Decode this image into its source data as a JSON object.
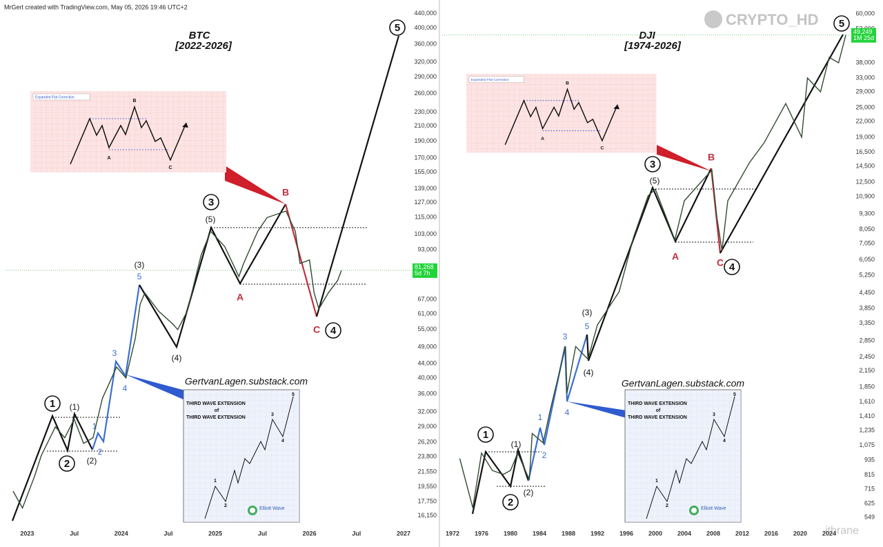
{
  "header": {
    "credit": "MrGert created with TradingView.com, May 05, 2026 19:46 UTC+2",
    "watermark": "CRYPTO_HD",
    "watermark2": "ithrane"
  },
  "insets": {
    "flat": {
      "title": "Expanded Flat Correction",
      "labels": [
        "A",
        "B",
        "C"
      ]
    },
    "third": {
      "line1": "THIRD WAVE EXTENSION",
      "line2": "of",
      "labels": [
        "1",
        "2",
        "3",
        "4",
        "5"
      ],
      "logo": "Elliott Wave"
    }
  },
  "chart_data": [
    {
      "type": "line",
      "title": "BTC",
      "subtitle": "[2022-2026]",
      "source": "GertvanLagen.substack.com",
      "color": "#2f4a2f",
      "log_scale": true,
      "x": [
        2022.85,
        2022.95,
        2023.08,
        2023.15,
        2023.3,
        2023.4,
        2023.5,
        2023.6,
        2023.7,
        2023.8,
        2023.95,
        2024.05,
        2024.15,
        2024.2,
        2024.25,
        2024.4,
        2024.55,
        2024.6,
        2024.7,
        2024.85,
        2024.95,
        2025.1,
        2025.25,
        2025.3,
        2025.45,
        2025.55,
        2025.75,
        2025.85,
        2025.9,
        2026.0,
        2026.05,
        2026.1,
        2026.2,
        2026.3,
        2026.34
      ],
      "values": [
        19000,
        17000,
        21000,
        24000,
        29000,
        27000,
        30500,
        26000,
        27000,
        35000,
        43000,
        40000,
        52000,
        65000,
        70000,
        62000,
        57000,
        55000,
        62000,
        90000,
        105000,
        95000,
        78000,
        85000,
        105000,
        115000,
        120000,
        105000,
        85000,
        87000,
        70000,
        63000,
        70000,
        76000,
        81268
      ],
      "xlim": [
        2022.77,
        2027.11
      ],
      "xticks": [
        2023,
        {
          "value": 2023.5,
          "label": "Jul"
        },
        2024,
        {
          "value": 2024.5,
          "label": "Jul"
        },
        2025,
        {
          "value": 2025.5,
          "label": "Jul"
        },
        2026,
        {
          "value": 2026.5,
          "label": "Jul"
        },
        2027
      ],
      "ylim": [
        14600,
        460000
      ],
      "yticks": [
        {
          "value": 440000,
          "label": "440,000"
        },
        {
          "value": 400000,
          "label": "400,000"
        },
        {
          "value": 360000,
          "label": "360,000"
        },
        {
          "value": 320000,
          "label": "320,000"
        },
        {
          "value": 290000,
          "label": "290,000"
        },
        {
          "value": 260000,
          "label": "260,000"
        },
        {
          "value": 230000,
          "label": "230,000"
        },
        {
          "value": 210000,
          "label": "210,000"
        },
        {
          "value": 190000,
          "label": "190,000"
        },
        {
          "value": 170000,
          "label": "170,000"
        },
        {
          "value": 155000,
          "label": "155,000"
        },
        {
          "value": 139000,
          "label": "139,000"
        },
        {
          "value": 127000,
          "label": "127,000"
        },
        {
          "value": 115000,
          "label": "115,000"
        },
        {
          "value": 103000,
          "label": "103,000"
        },
        {
          "value": 93000,
          "label": "93,000"
        },
        {
          "value": 67000,
          "label": "67,000"
        },
        {
          "value": 61000,
          "label": "61,000"
        },
        {
          "value": 55000,
          "label": "55,000"
        },
        {
          "value": 49000,
          "label": "49,000"
        },
        {
          "value": 44000,
          "label": "44,000"
        },
        {
          "value": 40000,
          "label": "40,000"
        },
        {
          "value": 36000,
          "label": "36,000"
        },
        {
          "value": 32000,
          "label": "32,000"
        },
        {
          "value": 29000,
          "label": "29,000"
        },
        {
          "value": 26200,
          "label": "26,200"
        },
        {
          "value": 23800,
          "label": "23,800"
        },
        {
          "value": 21550,
          "label": "21,550"
        },
        {
          "value": 19550,
          "label": "19,550"
        },
        {
          "value": 17750,
          "label": "17,750"
        },
        {
          "value": 16150,
          "label": "16,150"
        }
      ],
      "last_price": {
        "value": 81268,
        "label": "81,268"
      },
      "countdown": "5d 7h",
      "annotations": [
        "1",
        "(1)",
        "2",
        "(2)",
        "1",
        "2",
        "3",
        "4",
        "5",
        "(3)",
        "(4)",
        "3",
        "(5)",
        "A",
        "B",
        "C",
        "4",
        "5"
      ]
    },
    {
      "type": "line",
      "title": "DJI",
      "subtitle": "[1974-2026]",
      "source": "GertvanLagen.substack.com",
      "color": "#2f4a2f",
      "log_scale": true,
      "x": [
        1973,
        1974.8,
        1976,
        1977.5,
        1979,
        1980,
        1981,
        1982.6,
        1983,
        1984.5,
        1985.5,
        1987.6,
        1987.8,
        1989,
        1990.7,
        1992,
        1995,
        1997,
        1999,
        2000,
        2002.7,
        2004,
        2007.8,
        2008.5,
        2009.2,
        2010,
        2013,
        2015,
        2018,
        2020.2,
        2021,
        2022.8,
        2024,
        2025.3,
        2026.3
      ],
      "values": [
        950,
        600,
        1000,
        850,
        820,
        850,
        1000,
        780,
        1200,
        1100,
        1500,
        2700,
        1750,
        2700,
        2400,
        3300,
        4500,
        7500,
        11000,
        11700,
        7300,
        10500,
        14000,
        9000,
        6600,
        10500,
        15000,
        18000,
        26000,
        19000,
        33000,
        29000,
        40000,
        38000,
        49249
      ],
      "xlim": [
        1970.57,
        2026.86
      ],
      "xticks": [
        1972,
        1976,
        1980,
        1984,
        1988,
        1992,
        1996,
        2000,
        2004,
        2008,
        2012,
        2016,
        2020,
        2024
      ],
      "ylim": [
        483,
        64000
      ],
      "yticks": [
        {
          "value": 60000,
          "label": "60,000"
        },
        {
          "value": 52000,
          "label": "52,000"
        },
        {
          "value": 38000,
          "label": "38,000"
        },
        {
          "value": 33000,
          "label": "33,000"
        },
        {
          "value": 29000,
          "label": "29,000"
        },
        {
          "value": 25000,
          "label": "25,000"
        },
        {
          "value": 22000,
          "label": "22,000"
        },
        {
          "value": 19000,
          "label": "19,000"
        },
        {
          "value": 16500,
          "label": "16,500"
        },
        {
          "value": 14500,
          "label": "14,500"
        },
        {
          "value": 12500,
          "label": "12,500"
        },
        {
          "value": 10900,
          "label": "10,900"
        },
        {
          "value": 9300,
          "label": "9,300"
        },
        {
          "value": 8050,
          "label": "8,050"
        },
        {
          "value": 7050,
          "label": "7,050"
        },
        {
          "value": 6050,
          "label": "6,050"
        },
        {
          "value": 5250,
          "label": "5,250"
        },
        {
          "value": 4450,
          "label": "4,450"
        },
        {
          "value": 3850,
          "label": "3,850"
        },
        {
          "value": 3350,
          "label": "3,350"
        },
        {
          "value": 2850,
          "label": "2,850"
        },
        {
          "value": 2450,
          "label": "2,450"
        },
        {
          "value": 2150,
          "label": "2,150"
        },
        {
          "value": 1850,
          "label": "1,850"
        },
        {
          "value": 1610,
          "label": "1,610"
        },
        {
          "value": 1410,
          "label": "1,410"
        },
        {
          "value": 1235,
          "label": "1,235"
        },
        {
          "value": 1075,
          "label": "1,075"
        },
        935,
        815,
        715,
        625,
        549
      ],
      "last_price": {
        "value": 49249,
        "label": "49,249"
      },
      "countdown": "1M 25d",
      "annotations": [
        "1",
        "(1)",
        "2",
        "(2)",
        "1",
        "2",
        "3",
        "4",
        "5",
        "(3)",
        "(4)",
        "3",
        "(5)",
        "A",
        "B",
        "C",
        "4",
        "5"
      ]
    }
  ]
}
